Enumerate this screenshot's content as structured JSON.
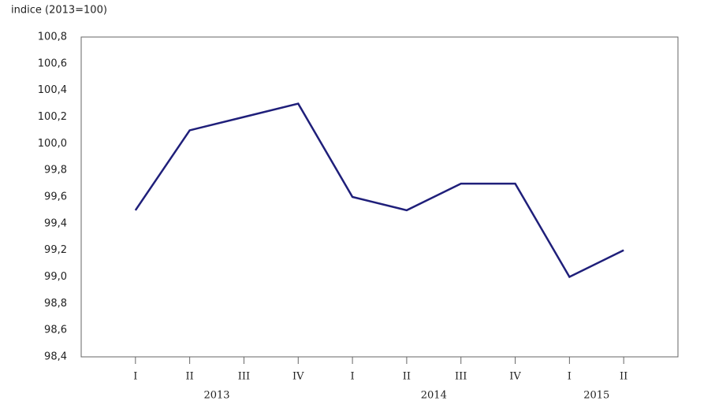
{
  "chart_data": {
    "type": "line",
    "y_axis_label": "indice (2013=100)",
    "categories": [
      "I",
      "II",
      "III",
      "IV",
      "I",
      "II",
      "III",
      "IV",
      "I",
      "II"
    ],
    "year_groups": [
      "2013",
      "2014",
      "2015"
    ],
    "series": [
      {
        "color": "#1f1f7a",
        "values": [
          99.5,
          100.1,
          100.2,
          100.3,
          99.6,
          99.5,
          99.7,
          99.7,
          99.0,
          99.2
        ]
      }
    ],
    "ylim": [
      98.4,
      100.8
    ],
    "yticks": [
      {
        "value": 98.4,
        "label": "98,4"
      },
      {
        "value": 98.6,
        "label": "98,6"
      },
      {
        "value": 98.8,
        "label": "98,8"
      },
      {
        "value": 99.0,
        "label": "99,0"
      },
      {
        "value": 99.2,
        "label": "99,2"
      },
      {
        "value": 99.4,
        "label": "99,4"
      },
      {
        "value": 99.6,
        "label": "99,6"
      },
      {
        "value": 99.8,
        "label": "99,8"
      },
      {
        "value": 100.0,
        "label": "100,0"
      },
      {
        "value": 100.2,
        "label": "100,2"
      },
      {
        "value": 100.4,
        "label": "100,4"
      },
      {
        "value": 100.6,
        "label": "100,6"
      },
      {
        "value": 100.8,
        "label": "100,8"
      }
    ],
    "grid": false
  }
}
